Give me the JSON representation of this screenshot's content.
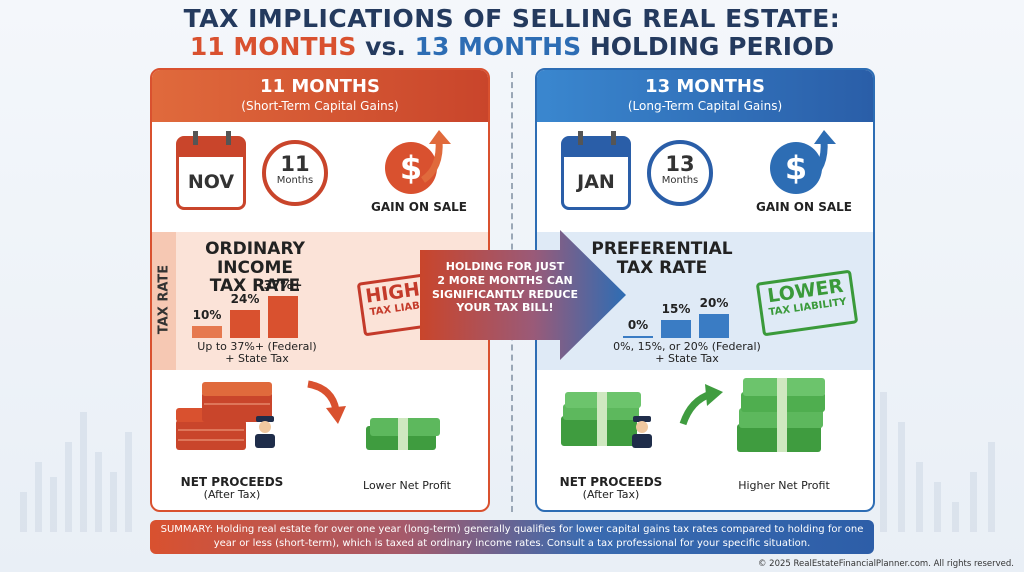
{
  "title": {
    "line1": "TAX IMPLICATIONS OF SELLING REAL ESTATE:",
    "line2_a": "11 MONTHS",
    "line2_vs": "vs.",
    "line2_b": "13 MONTHS",
    "line2_tail": "HOLDING PERIOD"
  },
  "left": {
    "heading": "11 MONTHS",
    "subheading": "(Short-Term Capital Gains)",
    "calendar_month": "NOV",
    "clock_number": "11",
    "clock_unit": "Months",
    "gain_label": "GAIN ON SALE",
    "tax_side_label": "TAX RATE",
    "rate_title_1": "ORDINARY INCOME",
    "rate_title_2": "TAX RATE",
    "bars": [
      {
        "label": "10%",
        "value": 10
      },
      {
        "label": "24%",
        "value": 24
      },
      {
        "label": "37%+",
        "value": 37
      }
    ],
    "note_1": "Up to 37%+ (Federal)",
    "note_2": "+ State Tax",
    "stamp_1": "HIGHER",
    "stamp_2": "TAX LIABILITY",
    "net_1": "NET PROCEEDS",
    "net_2": "(After Tax)",
    "profit": "Lower Net Profit",
    "accent": "#d9512f"
  },
  "right": {
    "heading": "13 MONTHS",
    "subheading": "(Long-Term Capital Gains)",
    "calendar_month": "JAN",
    "clock_number": "13",
    "clock_unit": "Months",
    "gain_label": "GAIN ON SALE",
    "rate_title_1": "PREFERENTIAL",
    "rate_title_2": "TAX RATE",
    "bars": [
      {
        "label": "0%",
        "value": 0
      },
      {
        "label": "15%",
        "value": 15
      },
      {
        "label": "20%",
        "value": 20
      }
    ],
    "note_1": "0%, 15%, or 20% (Federal)",
    "note_2": "+ State Tax",
    "stamp_1": "LOWER",
    "stamp_2": "TAX LIABILITY",
    "net_1": "NET PROCEEDS",
    "net_2": "(After Tax)",
    "profit": "Higher Net Profit",
    "accent": "#2d6db4"
  },
  "center_arrow": {
    "line1": "HOLDING FOR JUST",
    "line2": "2 MORE MONTHS CAN",
    "line3": "SIGNIFICANTLY REDUCE",
    "line4": "YOUR TAX BILL!"
  },
  "summary": "SUMMARY: Holding real estate for over one year (long-term) generally qualifies for lower capital gains tax rates compared to holding for one year or less (short-term), which is taxed at ordinary income rates. Consult a tax professional for your specific situation.",
  "copyright": "© 2025 RealEstateFinancialPlanner.com. All rights reserved."
}
